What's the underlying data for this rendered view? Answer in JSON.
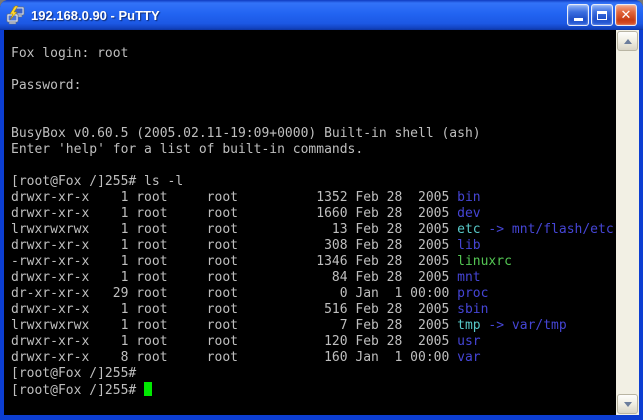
{
  "window": {
    "title": "192.168.0.90 - PuTTY",
    "controls": [
      {
        "name": "minimize"
      },
      {
        "name": "maximize"
      },
      {
        "name": "close"
      }
    ]
  },
  "colors": {
    "titlebar_blue": "#2264f2",
    "window_border_blue": "#0c3ed2",
    "close_button_red": "#d6512a",
    "terminal_background": "#000000",
    "terminal_foreground": "#bfbfbf",
    "directory_blue": "#4545d5",
    "symlink_cyan": "#58c8c8",
    "executable_green": "#53c653",
    "cursor_green": "#00e800"
  },
  "terminal": {
    "lines": [
      [
        {
          "t": "Fox login: root",
          "c": "fg"
        }
      ],
      [],
      [
        {
          "t": "Password:",
          "c": "fg"
        }
      ],
      [],
      [],
      [
        {
          "t": "BusyBox v0.60.5 (2005.02.11-19:09+0000) Built-in shell (ash)",
          "c": "fg"
        }
      ],
      [
        {
          "t": "Enter 'help' for a list of built-in commands.",
          "c": "fg"
        }
      ],
      [],
      [
        {
          "t": "[root@Fox /]255# ls -l",
          "c": "fg"
        }
      ],
      [
        {
          "t": "drwxr-xr-x    1 root     root          1352 Feb 28  2005 ",
          "c": "fg"
        },
        {
          "t": "bin",
          "c": "blue"
        }
      ],
      [
        {
          "t": "drwxr-xr-x    1 root     root          1660 Feb 28  2005 ",
          "c": "fg"
        },
        {
          "t": "dev",
          "c": "blue"
        }
      ],
      [
        {
          "t": "lrwxrwxrwx    1 root     root            13 Feb 28  2005 ",
          "c": "fg"
        },
        {
          "t": "etc",
          "c": "cyan"
        },
        {
          "t": " -> mnt/flash/etc",
          "c": "blue"
        }
      ],
      [
        {
          "t": "drwxr-xr-x    1 root     root           308 Feb 28  2005 ",
          "c": "fg"
        },
        {
          "t": "lib",
          "c": "blue"
        }
      ],
      [
        {
          "t": "-rwxr-xr-x    1 root     root          1346 Feb 28  2005 ",
          "c": "fg"
        },
        {
          "t": "linuxrc",
          "c": "green"
        }
      ],
      [
        {
          "t": "drwxr-xr-x    1 root     root            84 Feb 28  2005 ",
          "c": "fg"
        },
        {
          "t": "mnt",
          "c": "blue"
        }
      ],
      [
        {
          "t": "dr-xr-xr-x   29 root     root             0 Jan  1 00:00 ",
          "c": "fg"
        },
        {
          "t": "proc",
          "c": "blue"
        }
      ],
      [
        {
          "t": "drwxr-xr-x    1 root     root           516 Feb 28  2005 ",
          "c": "fg"
        },
        {
          "t": "sbin",
          "c": "blue"
        }
      ],
      [
        {
          "t": "lrwxrwxrwx    1 root     root             7 Feb 28  2005 ",
          "c": "fg"
        },
        {
          "t": "tmp",
          "c": "cyan"
        },
        {
          "t": " -> var/tmp",
          "c": "blue"
        }
      ],
      [
        {
          "t": "drwxr-xr-x    1 root     root           120 Feb 28  2005 ",
          "c": "fg"
        },
        {
          "t": "usr",
          "c": "blue"
        }
      ],
      [
        {
          "t": "drwxr-xr-x    8 root     root           160 Jan  1 00:00 ",
          "c": "fg"
        },
        {
          "t": "var",
          "c": "blue"
        }
      ],
      [
        {
          "t": "[root@Fox /]255#",
          "c": "fg"
        }
      ],
      [
        {
          "t": "[root@Fox /]255# ",
          "c": "fg"
        },
        {
          "cursor": true
        }
      ]
    ]
  }
}
